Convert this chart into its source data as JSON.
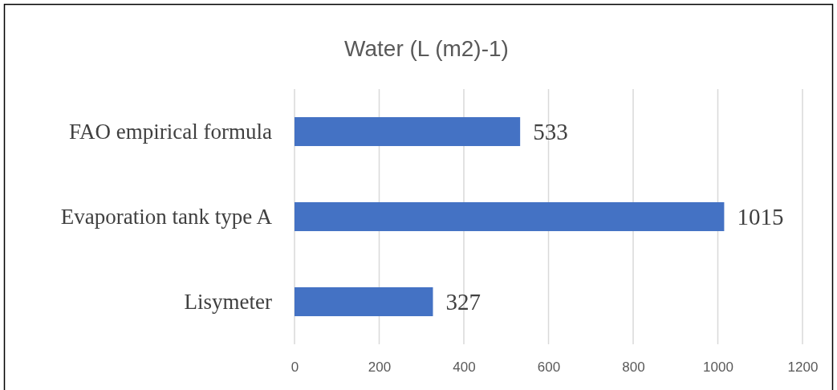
{
  "chart_data": {
    "type": "bar",
    "orientation": "horizontal",
    "title": "Water (L (m2)-1)",
    "categories": [
      "FAO empirical formula",
      "Evaporation tank type A",
      "Lisymeter"
    ],
    "values": [
      533,
      1015,
      327
    ],
    "color": "#4472c4",
    "xlim": [
      0,
      1200
    ],
    "xticks": [
      0,
      200,
      400,
      600,
      800,
      1000,
      1200
    ],
    "grid": "x",
    "data_labels": true
  }
}
